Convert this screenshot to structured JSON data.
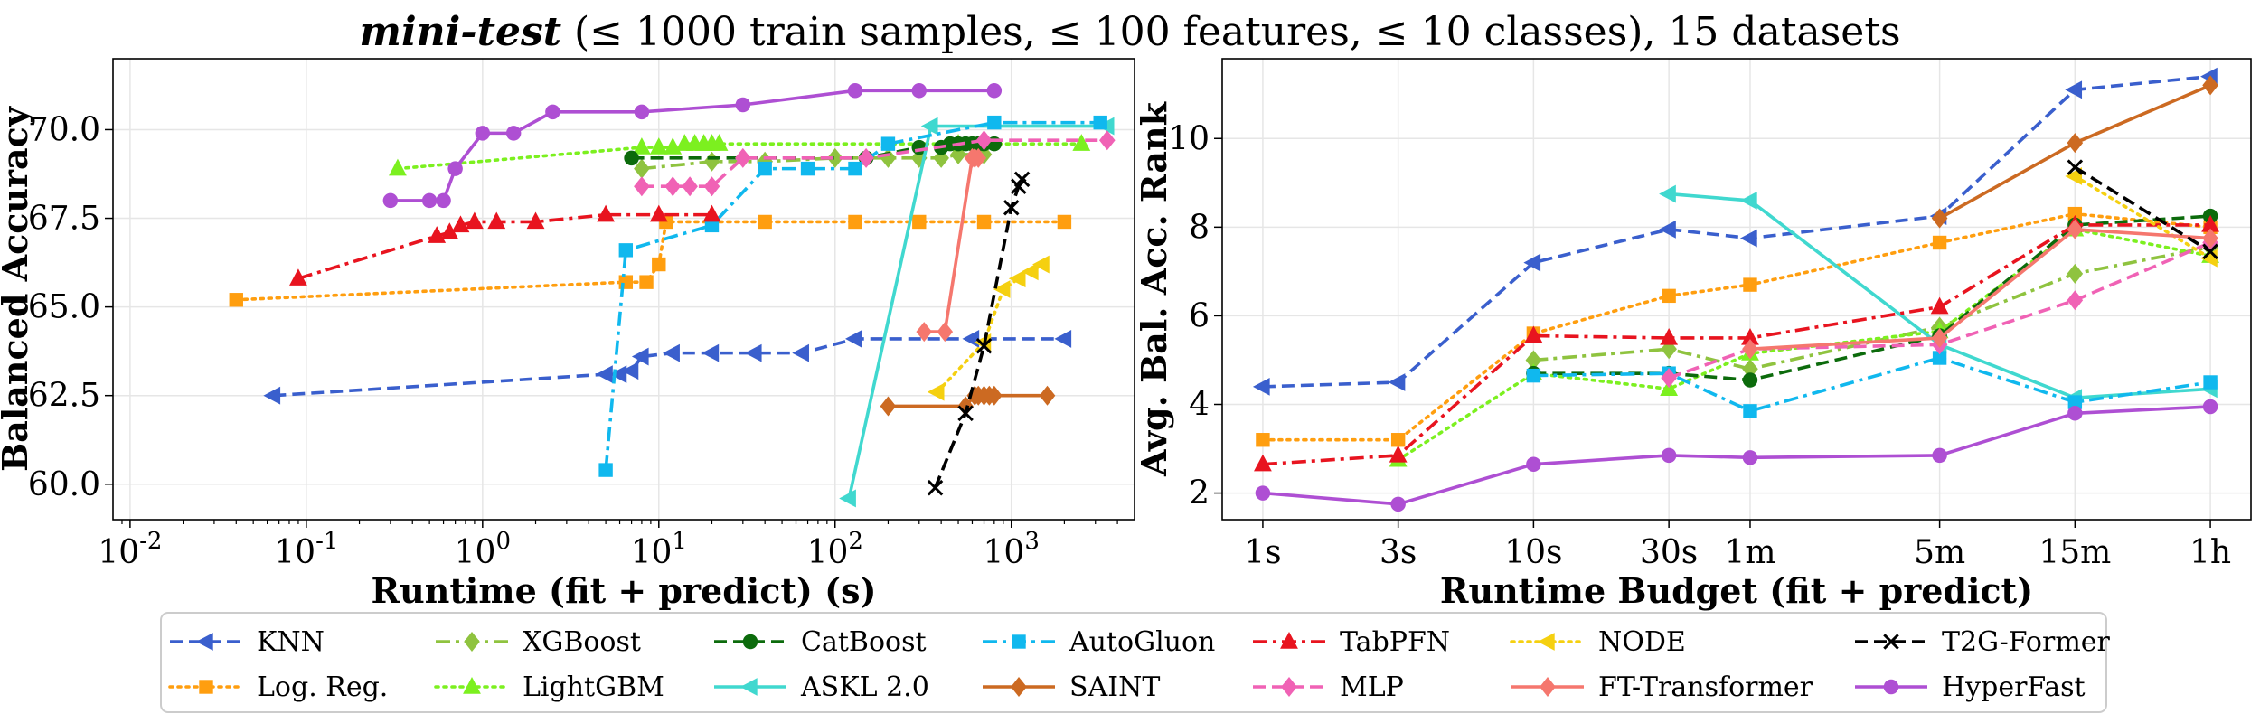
{
  "title": {
    "bold": "mini-test",
    "rest": " (≤ 1000 train samples, ≤ 100 features, ≤ 10 classes), 15 datasets"
  },
  "chart_data": [
    {
      "type": "line",
      "xscale": "log",
      "xlabel": "Runtime (fit + predict) (s)",
      "ylabel": "Balanced Accuracy",
      "xlim": [
        0.008,
        5000
      ],
      "ylim": [
        59.0,
        72.0
      ],
      "xticks": [
        0.01,
        0.1,
        1,
        10,
        100,
        1000
      ],
      "xtick_labels": [
        "10^-2",
        "10^-1",
        "10^0",
        "10^1",
        "10^2",
        "10^3"
      ],
      "yticks": [
        60.0,
        62.5,
        65.0,
        67.5,
        70.0
      ],
      "ytick_labels": [
        "60.0",
        "62.5",
        "65.0",
        "67.5",
        "70.0"
      ],
      "grid": true,
      "series": [
        {
          "name": "KNN",
          "x": [
            0.065,
            5,
            6,
            7,
            8,
            12,
            20,
            35,
            65,
            130,
            600,
            2000
          ],
          "y": [
            62.5,
            63.1,
            63.1,
            63.2,
            63.6,
            63.7,
            63.7,
            63.7,
            63.7,
            64.1,
            64.1,
            64.1
          ]
        },
        {
          "name": "Log. Reg.",
          "x": [
            0.04,
            6.5,
            8.5,
            10,
            11,
            40,
            130,
            300,
            700,
            2000
          ],
          "y": [
            65.2,
            65.7,
            65.7,
            66.2,
            67.4,
            67.4,
            67.4,
            67.4,
            67.4,
            67.4
          ]
        },
        {
          "name": "XGBoost",
          "x": [
            8,
            20,
            40,
            100,
            200,
            300,
            400,
            500,
            700
          ],
          "y": [
            68.9,
            69.1,
            69.1,
            69.2,
            69.2,
            69.2,
            69.2,
            69.3,
            69.3
          ]
        },
        {
          "name": "LightGBM",
          "x": [
            0.33,
            8,
            10,
            12,
            14,
            16,
            18,
            20,
            22,
            500,
            2500
          ],
          "y": [
            68.9,
            69.5,
            69.5,
            69.5,
            69.6,
            69.6,
            69.6,
            69.6,
            69.6,
            69.6,
            69.6
          ]
        },
        {
          "name": "CatBoost",
          "x": [
            7,
            150,
            300,
            400,
            450,
            500,
            550,
            600,
            650,
            700,
            800
          ],
          "y": [
            69.2,
            69.2,
            69.5,
            69.5,
            69.6,
            69.6,
            69.6,
            69.6,
            69.6,
            69.6,
            69.6
          ]
        },
        {
          "name": "ASKL 2.0",
          "x": [
            120,
            350,
            3500
          ],
          "y": [
            59.6,
            70.1,
            70.1
          ]
        },
        {
          "name": "AutoGluon",
          "x": [
            5,
            6.5,
            20,
            40,
            70,
            130,
            200,
            800,
            3200
          ],
          "y": [
            60.4,
            66.6,
            67.3,
            68.9,
            68.9,
            68.9,
            69.6,
            70.2,
            70.2
          ]
        },
        {
          "name": "SAINT",
          "x": [
            200,
            550,
            620,
            650,
            700,
            750,
            800,
            1600
          ],
          "y": [
            62.2,
            62.2,
            62.5,
            62.5,
            62.5,
            62.5,
            62.5,
            62.5
          ]
        },
        {
          "name": "TabPFN",
          "x": [
            0.09,
            0.55,
            0.65,
            0.75,
            0.9,
            1.2,
            2,
            5,
            10,
            20
          ],
          "y": [
            65.8,
            67.0,
            67.1,
            67.3,
            67.4,
            67.4,
            67.4,
            67.6,
            67.6,
            67.6
          ]
        },
        {
          "name": "MLP",
          "x": [
            8,
            12,
            15,
            20,
            30,
            150,
            700,
            3500
          ],
          "y": [
            68.4,
            68.4,
            68.4,
            68.4,
            69.2,
            69.2,
            69.7,
            69.7
          ]
        },
        {
          "name": "NODE",
          "x": [
            380,
            700,
            900,
            1100,
            1300,
            1500
          ],
          "y": [
            62.6,
            64.0,
            65.5,
            65.8,
            66.0,
            66.2
          ]
        },
        {
          "name": "FT-Transformer",
          "x": [
            320,
            420,
            600,
            620,
            650
          ],
          "y": [
            64.3,
            64.3,
            69.2,
            69.2,
            69.2
          ]
        },
        {
          "name": "T2G-Former",
          "x": [
            370,
            550,
            700,
            1000,
            1100,
            1150
          ],
          "y": [
            59.9,
            62.0,
            63.9,
            67.8,
            68.4,
            68.6
          ]
        },
        {
          "name": "HyperFast",
          "x": [
            0.3,
            0.5,
            0.6,
            0.7,
            1.0,
            1.5,
            2.5,
            8,
            30,
            130,
            300,
            800
          ],
          "y": [
            68.0,
            68.0,
            68.0,
            68.9,
            69.9,
            69.9,
            70.5,
            70.5,
            70.7,
            71.1,
            71.1,
            71.1
          ]
        }
      ]
    },
    {
      "type": "line",
      "xlabel": "Runtime Budget (fit + predict)",
      "ylabel": "Avg. Bal. Acc. Rank",
      "categories": [
        "1s",
        "3s",
        "10s",
        "30s",
        "1m",
        "5m",
        "15m",
        "1h"
      ],
      "ylim": [
        1.4,
        11.8
      ],
      "yticks": [
        2,
        4,
        6,
        8,
        10
      ],
      "ytick_labels": [
        "2",
        "4",
        "6",
        "8",
        "10"
      ],
      "grid": true,
      "series": [
        {
          "name": "KNN",
          "values": [
            4.4,
            4.5,
            7.2,
            7.95,
            7.75,
            8.25,
            11.1,
            11.4
          ]
        },
        {
          "name": "Log. Reg.",
          "values": [
            3.2,
            3.2,
            5.6,
            6.45,
            6.7,
            7.65,
            8.3,
            8.0
          ]
        },
        {
          "name": "XGBoost",
          "values": [
            null,
            null,
            5.0,
            5.25,
            4.8,
            5.75,
            6.95,
            7.55
          ]
        },
        {
          "name": "LightGBM",
          "values": [
            null,
            2.75,
            4.7,
            4.35,
            5.15,
            5.65,
            7.95,
            7.35
          ]
        },
        {
          "name": "CatBoost",
          "values": [
            null,
            null,
            4.7,
            4.7,
            4.55,
            5.55,
            8.05,
            8.25
          ]
        },
        {
          "name": "ASKL 2.0",
          "values": [
            null,
            null,
            null,
            8.75,
            8.6,
            5.35,
            4.15,
            4.35
          ]
        },
        {
          "name": "AutoGluon",
          "values": [
            null,
            null,
            4.65,
            4.7,
            3.85,
            5.05,
            4.05,
            4.5
          ]
        },
        {
          "name": "SAINT",
          "values": [
            null,
            null,
            null,
            null,
            null,
            8.2,
            9.9,
            11.2
          ]
        },
        {
          "name": "TabPFN",
          "values": [
            2.65,
            2.85,
            5.55,
            5.5,
            5.5,
            6.2,
            8.05,
            8.05
          ]
        },
        {
          "name": "MLP",
          "values": [
            null,
            null,
            null,
            4.6,
            5.25,
            5.35,
            6.35,
            7.65
          ]
        },
        {
          "name": "NODE",
          "values": [
            null,
            null,
            null,
            null,
            null,
            null,
            9.15,
            7.3
          ]
        },
        {
          "name": "FT-Transformer",
          "values": [
            null,
            null,
            null,
            null,
            5.25,
            5.5,
            7.95,
            7.75
          ]
        },
        {
          "name": "T2G-Former",
          "values": [
            null,
            null,
            null,
            null,
            null,
            null,
            9.35,
            7.45
          ]
        },
        {
          "name": "HyperFast",
          "values": [
            2.0,
            1.75,
            2.65,
            2.85,
            2.8,
            2.85,
            3.8,
            3.95
          ]
        }
      ]
    }
  ],
  "legend": [
    {
      "label": "KNN",
      "color": "#3a5fcd",
      "marker": "triangle-left",
      "dash": "dashed"
    },
    {
      "label": "XGBoost",
      "color": "#8fc33f",
      "marker": "diamond",
      "dash": "dashdot"
    },
    {
      "label": "CatBoost",
      "color": "#0c6b0c",
      "marker": "circle",
      "dash": "dashed"
    },
    {
      "label": "AutoGluon",
      "color": "#10b8ee",
      "marker": "square",
      "dash": "dashdot"
    },
    {
      "label": "TabPFN",
      "color": "#e8141f",
      "marker": "triangle-up",
      "dash": "dashdot"
    },
    {
      "label": "NODE",
      "color": "#f5d010",
      "marker": "triangle-left",
      "dash": "dotted"
    },
    {
      "label": "T2G-Former",
      "color": "#000000",
      "marker": "x",
      "dash": "dashed"
    },
    {
      "label": "Log. Reg.",
      "color": "#ff9e0f",
      "marker": "square",
      "dash": "dotted"
    },
    {
      "label": "LightGBM",
      "color": "#7cf01f",
      "marker": "triangle-up",
      "dash": "dotted"
    },
    {
      "label": "ASKL 2.0",
      "color": "#40d8cf",
      "marker": "triangle-left",
      "dash": "solid"
    },
    {
      "label": "SAINT",
      "color": "#cc6a22",
      "marker": "diamond",
      "dash": "solid"
    },
    {
      "label": "MLP",
      "color": "#f062b5",
      "marker": "diamond",
      "dash": "dashed"
    },
    {
      "label": "FT-Transformer",
      "color": "#f5776e",
      "marker": "diamond",
      "dash": "solid"
    },
    {
      "label": "HyperFast",
      "color": "#ae4fd3",
      "marker": "circle",
      "dash": "solid"
    }
  ]
}
